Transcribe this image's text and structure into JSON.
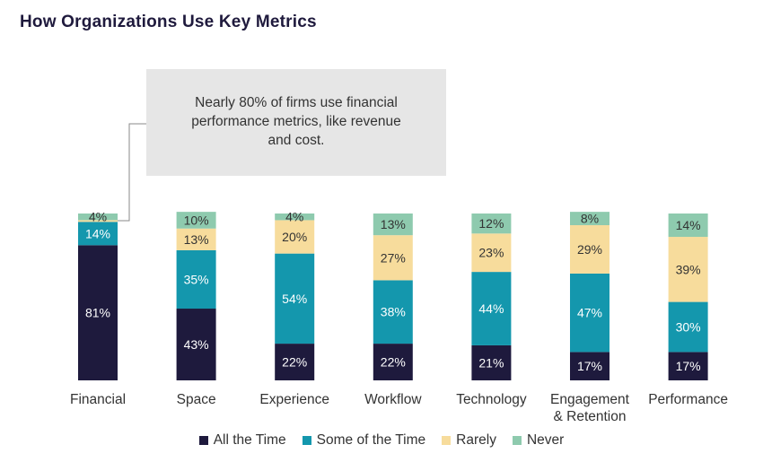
{
  "chart_data": {
    "type": "bar",
    "stacked": true,
    "percent": true,
    "title": "How Organizations Use Key Metrics",
    "annotation": [
      "Nearly 80% of firms use financial",
      "performance metrics, like revenue",
      "and cost."
    ],
    "categories": [
      [
        "Financial"
      ],
      [
        "Space"
      ],
      [
        "Experience"
      ],
      [
        "Workflow"
      ],
      [
        "Technology"
      ],
      [
        "Engagement",
        "& Retention"
      ],
      [
        "Performance"
      ]
    ],
    "series": [
      {
        "name": "All the Time",
        "color": "#1e1a3d",
        "label_color": "#ffffff",
        "values": [
          81,
          43,
          22,
          22,
          21,
          17,
          17
        ]
      },
      {
        "name": "Some of the Time",
        "color": "#1497ad",
        "label_color": "#ffffff",
        "values": [
          14,
          35,
          54,
          38,
          44,
          47,
          30
        ]
      },
      {
        "name": "Rarely",
        "color": "#f7dc9c",
        "label_color": "#333333",
        "values": [
          1,
          13,
          20,
          27,
          23,
          29,
          39
        ]
      },
      {
        "name": "Never",
        "color": "#8ecaae",
        "label_color": "#333333",
        "values": [
          4,
          10,
          4,
          13,
          12,
          8,
          14
        ]
      }
    ],
    "data_labels": [
      [
        "81%",
        "43%",
        "22%",
        "22%",
        "21%",
        "17%",
        "17%"
      ],
      [
        "14%",
        "35%",
        "54%",
        "38%",
        "44%",
        "47%",
        "30%"
      ],
      [
        "",
        "13%",
        "20%",
        "27%",
        "23%",
        "29%",
        "39%"
      ],
      [
        "4%",
        "10%",
        "4%",
        "13%",
        "12%",
        "8%",
        "14%"
      ]
    ],
    "legend_position": "bottom",
    "ylim": [
      0,
      100
    ]
  }
}
